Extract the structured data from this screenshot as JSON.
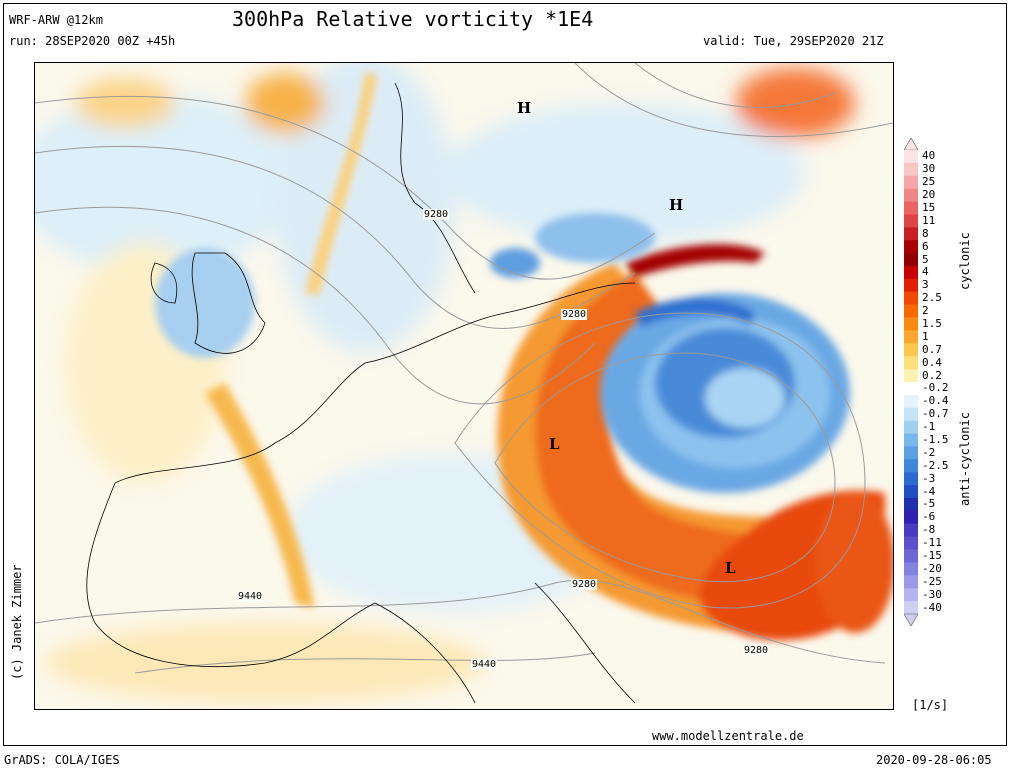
{
  "header": {
    "model": "WRF-ARW @12km",
    "run": "run: 28SEP2020 00Z +45h",
    "title": "300hPa Relative vorticity *1E4",
    "valid": "valid: Tue, 29SEP2020 21Z"
  },
  "map": {
    "pressure_centers": [
      {
        "label": "H"
      },
      {
        "label": "H"
      },
      {
        "label": "L"
      },
      {
        "label": "L"
      }
    ],
    "contour_labels": [
      "9280",
      "9280",
      "9280",
      "9280",
      "9440",
      "9440"
    ]
  },
  "colorbar": {
    "labels": [
      "40",
      "30",
      "25",
      "20",
      "15",
      "11",
      "8",
      "6",
      "5",
      "4",
      "3",
      "2.5",
      "2",
      "1.5",
      "1",
      "0.7",
      "0.4",
      "0.2",
      "-0.2",
      "-0.4",
      "-0.7",
      "-1",
      "-1.5",
      "-2",
      "-2.5",
      "-3",
      "-4",
      "-5",
      "-6",
      "-8",
      "-11",
      "-15",
      "-20",
      "-25",
      "-30",
      "-40"
    ],
    "colors": [
      "#fce4e4",
      "#f9c6c6",
      "#f5a7a7",
      "#f08787",
      "#ea6464",
      "#e04545",
      "#c82020",
      "#a80000",
      "#900000",
      "#c80000",
      "#e02000",
      "#f04a00",
      "#f86a00",
      "#fb8a10",
      "#fca830",
      "#fcc850",
      "#fde07a",
      "#fef2b0",
      "#ffffff",
      "#e4f3fb",
      "#c4e4f6",
      "#9fd0f0",
      "#79b8ea",
      "#5aa0e2",
      "#3d86da",
      "#2b6bcf",
      "#1f4fc2",
      "#1e2fa8",
      "#3320b0",
      "#4b3ac0",
      "#5a50cc",
      "#6c66d6",
      "#8282e0",
      "#9a9ae8",
      "#b4b4ee",
      "#cfcff4"
    ],
    "cyclonic_label": "cyclonic",
    "anticyclonic_label": "anti-cyclonic",
    "unit": "[1/s]"
  },
  "credits": {
    "author": "(c) Janek Zimmer",
    "website": "www.modellzentrale.de",
    "grads": "GrADS: COLA/IGES",
    "timestamp": "2020-09-28-06:05"
  }
}
